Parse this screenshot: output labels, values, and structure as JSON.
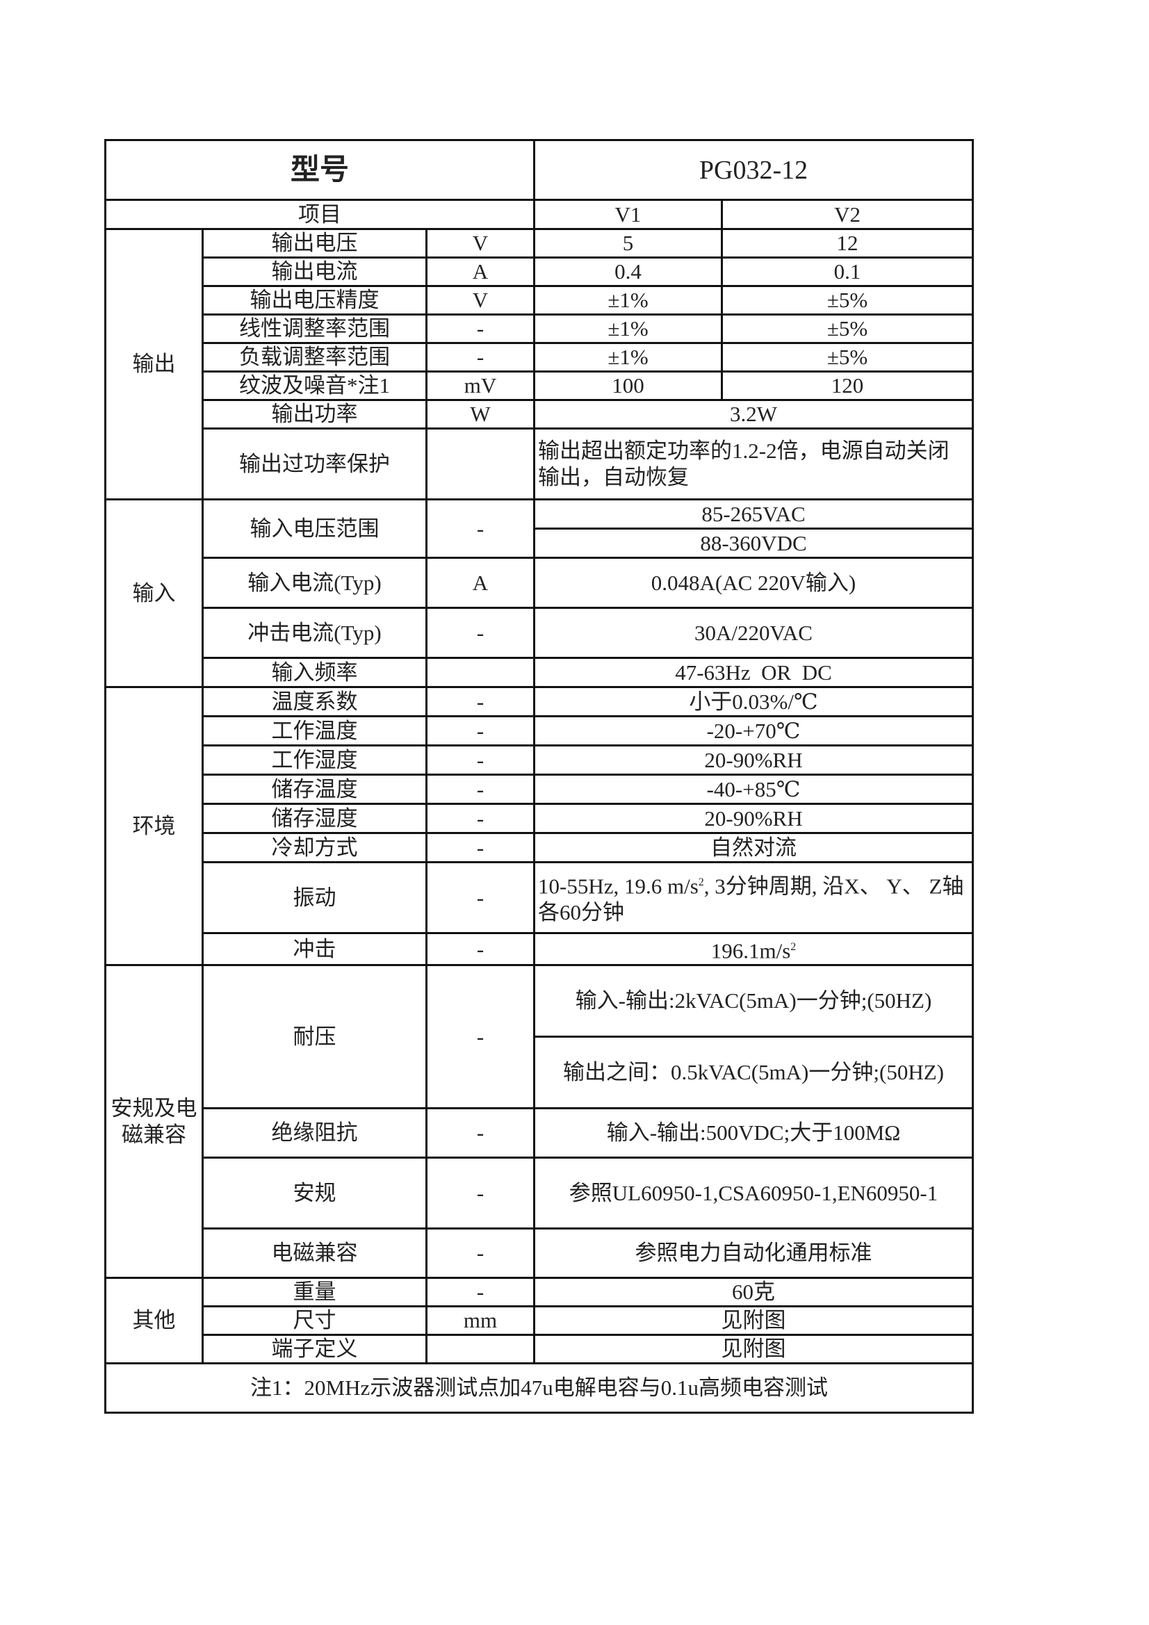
{
  "header": {
    "model_label": "型号",
    "model_value": "PG032-12",
    "item_label": "项目",
    "col_v1": "V1",
    "col_v2": "V2"
  },
  "output": {
    "group": "输出",
    "rows": [
      {
        "name": "输出电压",
        "unit": "V",
        "v1": "5",
        "v2": "12"
      },
      {
        "name": "输出电流",
        "unit": "A",
        "v1": "0.4",
        "v2": "0.1"
      },
      {
        "name": "输出电压精度",
        "unit": "V",
        "v1": "±1%",
        "v2": "±5%"
      },
      {
        "name": "线性调整率范围",
        "unit": "-",
        "v1": "±1%",
        "v2": "±5%"
      },
      {
        "name": "负载调整率范围",
        "unit": "-",
        "v1": "±1%",
        "v2": "±5%"
      },
      {
        "name": "纹波及噪音*注1",
        "unit": "mV",
        "v1": "100",
        "v2": "120"
      },
      {
        "name": "输出功率",
        "unit": "W",
        "value": "3.2W"
      },
      {
        "name": "输出过功率保护",
        "unit": "",
        "value": "输出超出额定功率的1.2-2倍，电源自动关闭输出，自动恢复"
      }
    ]
  },
  "input": {
    "group": "输入",
    "rows": [
      {
        "name": "输入电压范围",
        "unit": "-",
        "values": [
          "85-265VAC",
          "88-360VDC"
        ]
      },
      {
        "name": "输入电流(Typ)",
        "unit": "A",
        "value": "0.048A(AC 220V输入)"
      },
      {
        "name": "冲击电流(Typ)",
        "unit": "-",
        "value": "30A/220VAC"
      },
      {
        "name": "输入频率",
        "unit": "",
        "value": "47-63Hz  OR  DC"
      }
    ]
  },
  "environment": {
    "group": "环境",
    "rows": [
      {
        "name": "温度系数",
        "unit": "-",
        "value": "小于0.03%/℃"
      },
      {
        "name": "工作温度",
        "unit": "-",
        "value": "-20-+70℃"
      },
      {
        "name": "工作湿度",
        "unit": "-",
        "value": "20-90%RH"
      },
      {
        "name": "储存温度",
        "unit": "-",
        "value": "-40-+85℃"
      },
      {
        "name": "储存湿度",
        "unit": "-",
        "value": "20-90%RH"
      },
      {
        "name": "冷却方式",
        "unit": "-",
        "value": "自然对流"
      },
      {
        "name": "振动",
        "unit": "-",
        "value_a": "10-55Hz, 19.6  m/s",
        "value_sup": "2",
        "value_b": ", 3分钟周期, 沿X、 Y、 Z轴各60分钟"
      },
      {
        "name": "冲击",
        "unit": "-",
        "value_a": "196.1m/s",
        "value_sup": "2"
      }
    ]
  },
  "safety": {
    "group": "安规及电磁兼容",
    "rows": [
      {
        "name": "耐压",
        "unit": "-",
        "values": [
          "输入-输出:2kVAC(5mA)一分钟;(50HZ)",
          "输出之间：0.5kVAC(5mA)一分钟;(50HZ)"
        ]
      },
      {
        "name": "绝缘阻抗",
        "unit": "-",
        "value": "输入-输出:500VDC;大于100MΩ"
      },
      {
        "name": "安规",
        "unit": "-",
        "value": "参照UL60950-1,CSA60950-1,EN60950-1"
      },
      {
        "name": "电磁兼容",
        "unit": "-",
        "value": "参照电力自动化通用标准"
      }
    ]
  },
  "other": {
    "group": "其他",
    "rows": [
      {
        "name": "重量",
        "unit": "-",
        "value": "60克"
      },
      {
        "name": "尺寸",
        "unit": "mm",
        "value": "见附图"
      },
      {
        "name": "端子定义",
        "unit": "",
        "value": "见附图"
      }
    ]
  },
  "note": "注1：20MHz示波器测试点加47u电解电容与0.1u高频电容测试"
}
